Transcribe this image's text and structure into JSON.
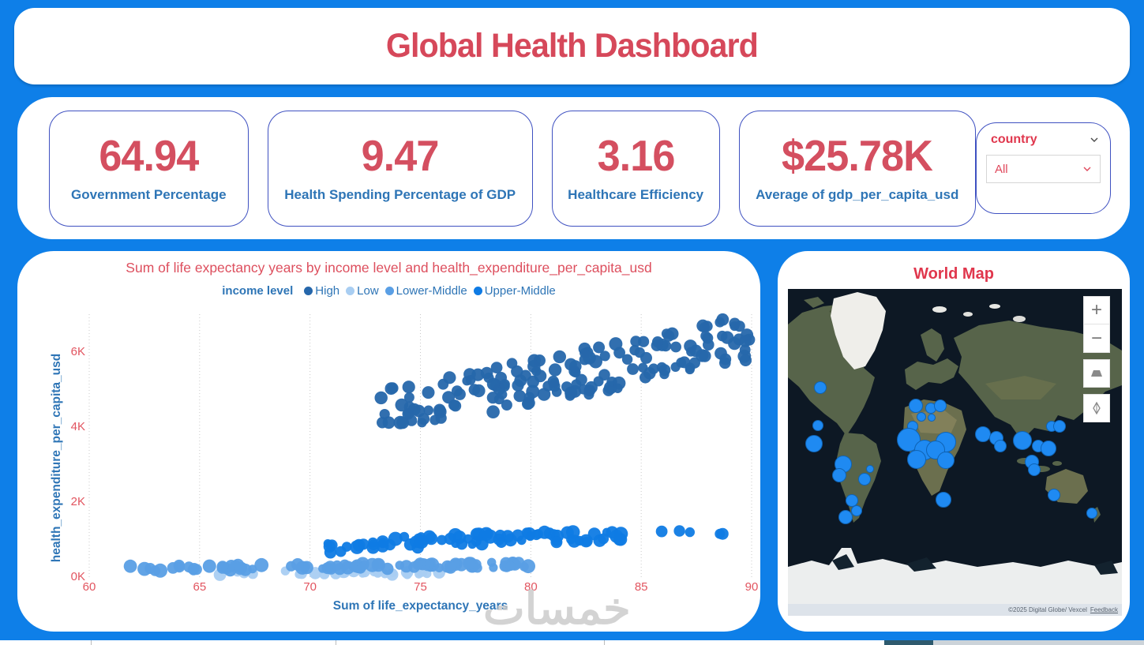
{
  "page": {
    "title": "Global Health Dashboard"
  },
  "colors": {
    "background": "#0e7fe8",
    "accent_red": "#d6485a",
    "label_blue": "#2e75b6",
    "card_border": "#3f51c1",
    "map_bubble": "#1f8af2",
    "series_high": "#2667ab",
    "series_low": "#a9cef2",
    "series_lower_middle": "#5a9fe5",
    "series_upper_middle": "#0f7be4"
  },
  "kpis": [
    {
      "value": "64.94",
      "label": "Government Percentage"
    },
    {
      "value": "9.47",
      "label": "Health Spending Percentage of GDP"
    },
    {
      "value": "3.16",
      "label": "Healthcare Efficiency"
    },
    {
      "value": "$25.78K",
      "label": "Average of gdp_per_capita_usd"
    }
  ],
  "slicer": {
    "label": "country",
    "value": "All"
  },
  "map": {
    "controls": {
      "zoom_in": "+",
      "zoom_out": "−"
    },
    "attribution": "©2025 Digital Globe/ Vexcel",
    "attribution_link": "Feedback"
  },
  "watermark": "خمسات",
  "chart_data": [
    {
      "type": "scatter",
      "title": "Sum of life expectancy years by income level and health_expenditure_per_capita_usd",
      "xlabel": "Sum of life_expectancy_years",
      "ylabel": "health_expenditure_per_capita_usd",
      "legend_title": "income level",
      "legend_position": "top-center",
      "grid": "vertical-dotted",
      "xlim": [
        60,
        90
      ],
      "x_ticks": [
        60,
        65,
        70,
        75,
        80,
        85,
        90
      ],
      "ylim": [
        0,
        7000
      ],
      "y_ticks": [
        {
          "v": 0,
          "label": "0K"
        },
        {
          "v": 2000,
          "label": "2K"
        },
        {
          "v": 4000,
          "label": "4K"
        },
        {
          "v": 6000,
          "label": "6K"
        }
      ],
      "legend_order": [
        "High",
        "Low",
        "Lower-Middle",
        "Upper-Middle"
      ],
      "draw_order": [
        "Low",
        "Lower-Middle",
        "Upper-Middle",
        "High"
      ],
      "series": [
        {
          "name": "High",
          "color": "#2667ab",
          "clusters": [
            {
              "count": 165,
              "x_min": 73.2,
              "x_max": 90.0,
              "y_base": 4350,
              "y_slope": 120,
              "y_jitter": 640,
              "y_min": 4100,
              "y_max": 6900,
              "r_min": 6,
              "r_max": 8.5
            }
          ]
        },
        {
          "name": "Low",
          "color": "#a9cef2",
          "clusters": [
            {
              "count": 30,
              "x_min": 65.8,
              "x_max": 76.2,
              "y_base": 90,
              "y_slope": 0,
              "y_jitter": 55,
              "y_min": 30,
              "y_max": 170,
              "r_min": 5,
              "r_max": 8
            }
          ]
        },
        {
          "name": "Lower-Middle",
          "color": "#5a9fe5",
          "clusters": [
            {
              "count": 90,
              "x_min": 61.4,
              "x_max": 80.6,
              "y_base": 200,
              "y_slope": 6,
              "y_jitter": 75,
              "y_min": 120,
              "y_max": 420,
              "r_min": 5.5,
              "r_max": 9
            }
          ]
        },
        {
          "name": "Upper-Middle",
          "color": "#0f7be4",
          "clusters": [
            {
              "count": 78,
              "x_min": 70.8,
              "x_max": 84.4,
              "y_base": 800,
              "y_slope": 25,
              "y_jitter": 170,
              "y_min": 560,
              "y_max": 1350,
              "r_min": 5.5,
              "r_max": 9
            },
            {
              "count": 5,
              "x_min": 85.7,
              "x_max": 88.9,
              "y_base": 1200,
              "y_slope": 0,
              "y_jitter": 80,
              "y_min": 1050,
              "y_max": 1320,
              "r_min": 6,
              "r_max": 8
            }
          ]
        }
      ]
    },
    {
      "type": "map-bubble",
      "title": "World Map",
      "bubbles": [
        {
          "x": 9.7,
          "y": 30.2,
          "r": 8
        },
        {
          "x": 9.0,
          "y": 41.8,
          "r": 7
        },
        {
          "x": 7.8,
          "y": 47.3,
          "r": 11
        },
        {
          "x": 16.5,
          "y": 53.6,
          "r": 11
        },
        {
          "x": 15.4,
          "y": 57.0,
          "r": 9
        },
        {
          "x": 22.9,
          "y": 58.2,
          "r": 8
        },
        {
          "x": 24.5,
          "y": 55.0,
          "r": 5
        },
        {
          "x": 19.1,
          "y": 64.7,
          "r": 8
        },
        {
          "x": 17.3,
          "y": 69.8,
          "r": 9
        },
        {
          "x": 20.5,
          "y": 67.9,
          "r": 7
        },
        {
          "x": 38.3,
          "y": 35.7,
          "r": 9
        },
        {
          "x": 42.8,
          "y": 36.5,
          "r": 7
        },
        {
          "x": 45.6,
          "y": 35.7,
          "r": 8
        },
        {
          "x": 40.0,
          "y": 39.1,
          "r": 6
        },
        {
          "x": 43.0,
          "y": 39.4,
          "r": 5
        },
        {
          "x": 37.4,
          "y": 42.0,
          "r": 7
        },
        {
          "x": 36.2,
          "y": 46.1,
          "r": 15
        },
        {
          "x": 40.9,
          "y": 49.3,
          "r": 13
        },
        {
          "x": 47.3,
          "y": 46.9,
          "r": 13
        },
        {
          "x": 38.5,
          "y": 52.2,
          "r": 12
        },
        {
          "x": 44.2,
          "y": 49.3,
          "r": 12
        },
        {
          "x": 47.3,
          "y": 52.4,
          "r": 11
        },
        {
          "x": 46.6,
          "y": 64.5,
          "r": 10
        },
        {
          "x": 58.4,
          "y": 44.4,
          "r": 10
        },
        {
          "x": 62.4,
          "y": 45.7,
          "r": 9
        },
        {
          "x": 63.6,
          "y": 48.1,
          "r": 8
        },
        {
          "x": 70.2,
          "y": 46.4,
          "r": 12
        },
        {
          "x": 75.0,
          "y": 48.1,
          "r": 8
        },
        {
          "x": 73.0,
          "y": 52.9,
          "r": 9
        },
        {
          "x": 73.8,
          "y": 55.3,
          "r": 8
        },
        {
          "x": 78.0,
          "y": 48.8,
          "r": 10
        },
        {
          "x": 79.0,
          "y": 42.0,
          "r": 7
        },
        {
          "x": 81.3,
          "y": 42.0,
          "r": 8
        },
        {
          "x": 79.7,
          "y": 63.0,
          "r": 8
        },
        {
          "x": 91.0,
          "y": 68.6,
          "r": 7
        }
      ]
    }
  ]
}
